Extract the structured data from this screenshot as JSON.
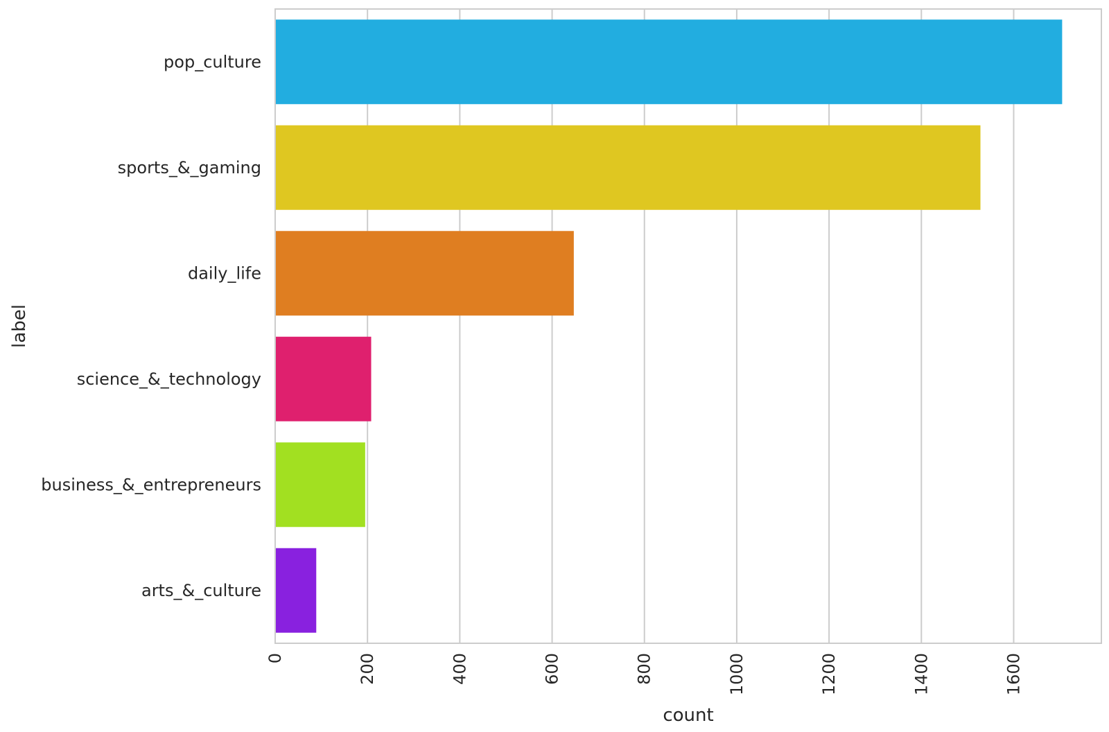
{
  "chart_data": {
    "type": "bar",
    "orientation": "horizontal",
    "title": "",
    "xlabel": "count",
    "ylabel": "label",
    "xlim": [
      0,
      1790
    ],
    "x_ticks": [
      0,
      200,
      400,
      600,
      800,
      1000,
      1200,
      1400,
      1600
    ],
    "x_tick_labels": [
      "0",
      "200",
      "400",
      "600",
      "800",
      "1000",
      "1200",
      "1400",
      "1600"
    ],
    "grid": "vertical",
    "legend": "none",
    "categories": [
      "pop_culture",
      "sports_&_gaming",
      "daily_life",
      "science_&_technology",
      "business_&_entrepreneurs",
      "arts_&_culture"
    ],
    "values": [
      1705,
      1528,
      647,
      208,
      195,
      89
    ],
    "colors": [
      "#22ade0",
      "#dfc721",
      "#df7e21",
      "#df206e",
      "#a2e021",
      "#8921df"
    ]
  },
  "style": {
    "grid_color": "#cccccc",
    "frame_color": "#cccccc",
    "text_color": "#262626"
  }
}
